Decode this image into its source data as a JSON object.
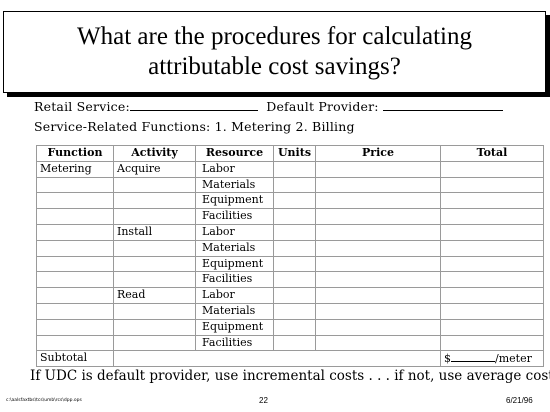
{
  "title": {
    "line1": "What are the procedures for calculating",
    "line2": "attributable cost savings?"
  },
  "info": {
    "retail_service_label": "Retail Service:",
    "default_provider_label": "Default Provider:",
    "functions_line": "Service-Related Functions:  1.  Metering  2. Billing"
  },
  "table": {
    "headers": {
      "function": "Function",
      "activity": "Activity",
      "resource": "Resource",
      "units": "Units",
      "price": "Price",
      "total": "Total"
    },
    "rows": [
      {
        "function": "Metering",
        "activity": "Acquire",
        "resource": "Labor"
      },
      {
        "function": "",
        "activity": "",
        "resource": "Materials"
      },
      {
        "function": "",
        "activity": "",
        "resource": "Equipment"
      },
      {
        "function": "",
        "activity": "",
        "resource": "Facilities"
      },
      {
        "function": "",
        "activity": "Install",
        "resource": "Labor"
      },
      {
        "function": "",
        "activity": "",
        "resource": "Materials"
      },
      {
        "function": "",
        "activity": "",
        "resource": "Equipment"
      },
      {
        "function": "",
        "activity": "",
        "resource": "Facilities"
      },
      {
        "function": "",
        "activity": "Read",
        "resource": "Labor"
      },
      {
        "function": "",
        "activity": "",
        "resource": "Materials"
      },
      {
        "function": "",
        "activity": "",
        "resource": "Equipment"
      },
      {
        "function": "",
        "activity": "",
        "resource": "Facilities"
      }
    ],
    "subtotal_label": "Subtotal",
    "subtotal_value_prefix": "$",
    "subtotal_value_suffix": "/meter"
  },
  "footer": {
    "note": "If UDC is default provider, use incremental costs . . . if not, use average costs.",
    "path": "c:\\aalsfaxtbs\\tcs\\umb\\rcs\\dpp.ops",
    "page": "22",
    "date": "6/21/96"
  }
}
